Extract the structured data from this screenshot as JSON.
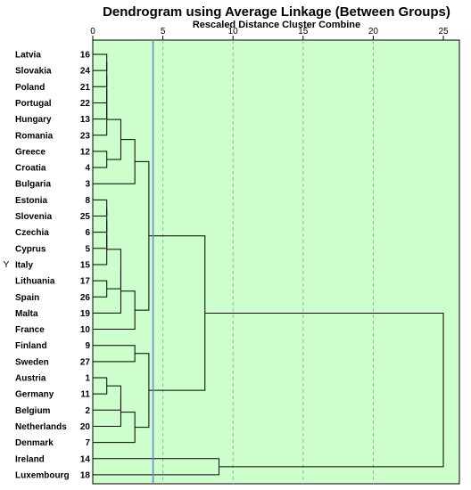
{
  "chart_data": {
    "type": "dendrogram",
    "title": "Dendrogram using Average Linkage (Between Groups)",
    "subtitle": "Rescaled Distance Cluster Combine",
    "y_axis_label": "Y",
    "x_ticks": [
      0,
      5,
      10,
      15,
      20,
      25
    ],
    "xlim": [
      0,
      25
    ],
    "cut_line": 4.3,
    "grid": true,
    "colors": {
      "plot_background": "#ccffcc",
      "grid": "#a8a8a8",
      "cut_line": "#6a7fd8",
      "lines": "#000000"
    },
    "leaves": [
      {
        "label": "Latvia",
        "id": 16
      },
      {
        "label": "Slovakia",
        "id": 24
      },
      {
        "label": "Poland",
        "id": 21
      },
      {
        "label": "Portugal",
        "id": 22
      },
      {
        "label": "Hungary",
        "id": 13
      },
      {
        "label": "Romania",
        "id": 23
      },
      {
        "label": "Greece",
        "id": 12
      },
      {
        "label": "Croatia",
        "id": 4
      },
      {
        "label": "Bulgaria",
        "id": 3
      },
      {
        "label": "Estonia",
        "id": 8
      },
      {
        "label": "Slovenia",
        "id": 25
      },
      {
        "label": "Czechia",
        "id": 6
      },
      {
        "label": "Cyprus",
        "id": 5
      },
      {
        "label": "Italy",
        "id": 15
      },
      {
        "label": "Lithuania",
        "id": 17
      },
      {
        "label": "Spain",
        "id": 26
      },
      {
        "label": "Malta",
        "id": 19
      },
      {
        "label": "France",
        "id": 10
      },
      {
        "label": "Finland",
        "id": 9
      },
      {
        "label": "Sweden",
        "id": 27
      },
      {
        "label": "Austria",
        "id": 1
      },
      {
        "label": "Germany",
        "id": 11
      },
      {
        "label": "Belgium",
        "id": 2
      },
      {
        "label": "Netherlands",
        "id": 20
      },
      {
        "label": "Denmark",
        "id": 7
      },
      {
        "label": "Ireland",
        "id": 14
      },
      {
        "label": "Luxembourg",
        "id": 18
      }
    ],
    "merges": [
      {
        "a": [
          "L",
          0
        ],
        "b": [
          "L",
          1
        ],
        "h": 1
      },
      {
        "a": [
          "M",
          0
        ],
        "b": [
          "L",
          2
        ],
        "h": 1
      },
      {
        "a": [
          "M",
          1
        ],
        "b": [
          "L",
          3
        ],
        "h": 1
      },
      {
        "a": [
          "M",
          2
        ],
        "b": [
          "L",
          4
        ],
        "h": 1
      },
      {
        "a": [
          "M",
          3
        ],
        "b": [
          "L",
          5
        ],
        "h": 1
      },
      {
        "a": [
          "L",
          6
        ],
        "b": [
          "L",
          7
        ],
        "h": 1
      },
      {
        "a": [
          "M",
          4
        ],
        "b": [
          "M",
          5
        ],
        "h": 2
      },
      {
        "a": [
          "M",
          6
        ],
        "b": [
          "L",
          8
        ],
        "h": 3
      },
      {
        "a": [
          "L",
          9
        ],
        "b": [
          "L",
          10
        ],
        "h": 1
      },
      {
        "a": [
          "M",
          8
        ],
        "b": [
          "L",
          11
        ],
        "h": 1
      },
      {
        "a": [
          "M",
          9
        ],
        "b": [
          "L",
          12
        ],
        "h": 1
      },
      {
        "a": [
          "M",
          10
        ],
        "b": [
          "L",
          13
        ],
        "h": 1
      },
      {
        "a": [
          "L",
          14
        ],
        "b": [
          "L",
          15
        ],
        "h": 1
      },
      {
        "a": [
          "M",
          11
        ],
        "b": [
          "M",
          12
        ],
        "h": 2
      },
      {
        "a": [
          "M",
          13
        ],
        "b": [
          "L",
          16
        ],
        "h": 2
      },
      {
        "a": [
          "M",
          14
        ],
        "b": [
          "L",
          17
        ],
        "h": 3
      },
      {
        "a": [
          "M",
          7
        ],
        "b": [
          "M",
          15
        ],
        "h": 4
      },
      {
        "a": [
          "L",
          18
        ],
        "b": [
          "L",
          19
        ],
        "h": 3
      },
      {
        "a": [
          "L",
          20
        ],
        "b": [
          "L",
          21
        ],
        "h": 1
      },
      {
        "a": [
          "M",
          18
        ],
        "b": [
          "L",
          22
        ],
        "h": 2
      },
      {
        "a": [
          "M",
          19
        ],
        "b": [
          "L",
          23
        ],
        "h": 2
      },
      {
        "a": [
          "M",
          20
        ],
        "b": [
          "L",
          24
        ],
        "h": 3
      },
      {
        "a": [
          "M",
          17
        ],
        "b": [
          "M",
          21
        ],
        "h": 4
      },
      {
        "a": [
          "M",
          16
        ],
        "b": [
          "M",
          22
        ],
        "h": 8
      },
      {
        "a": [
          "L",
          25
        ],
        "b": [
          "L",
          26
        ],
        "h": 9
      },
      {
        "a": [
          "M",
          23
        ],
        "b": [
          "M",
          24
        ],
        "h": 25
      }
    ]
  }
}
